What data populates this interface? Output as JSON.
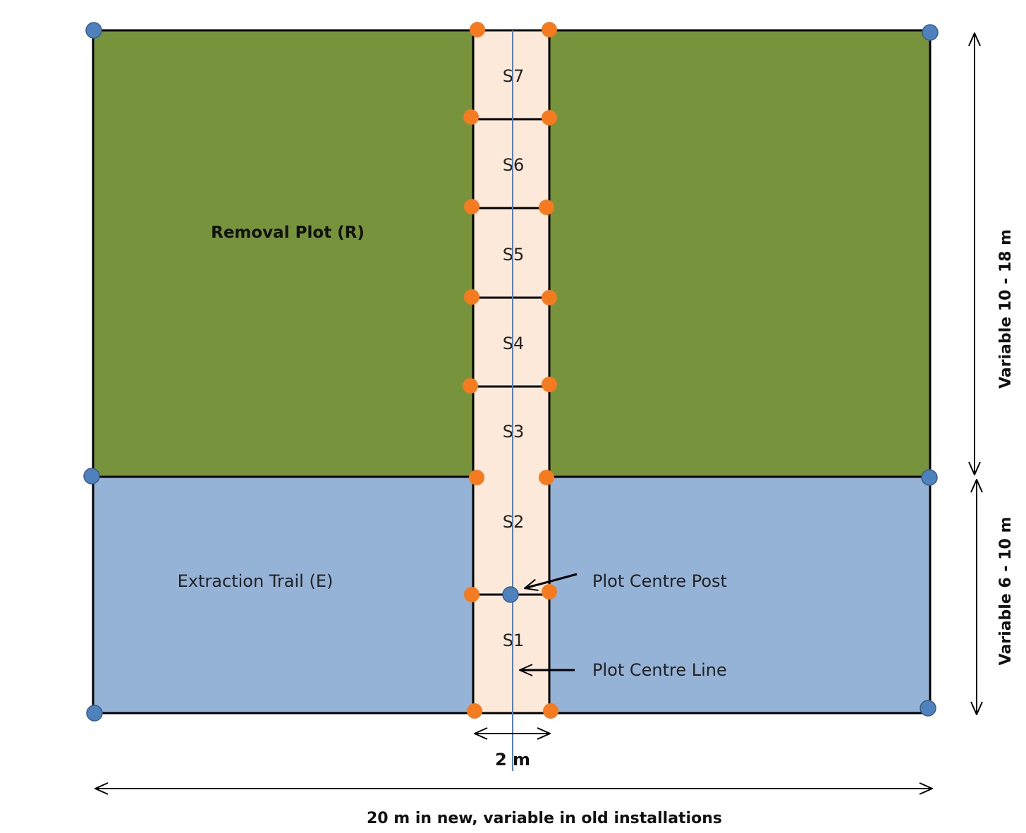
{
  "diagram": {
    "colors": {
      "removal_plot": "#77933c",
      "extraction_trail": "#95b3d7",
      "subplot_strip": "#fde9d9",
      "outline": "#000000",
      "centre_line": "#4f81bd",
      "corner_marker": "#4f81bd",
      "subplot_marker": "#f47b20"
    },
    "labels": {
      "removal_plot": "Removal Plot (R)",
      "extraction_trail": "Extraction Trail (E)",
      "plot_centre_post": "Plot Centre Post",
      "plot_centre_line": "Plot Centre Line",
      "strip_width": "2 m",
      "plot_width": "20 m in new, variable in old installations",
      "removal_depth": "Variable 10 - 18 m",
      "trail_depth": "Variable 6 - 10 m"
    },
    "subplots": [
      "S7",
      "S6",
      "S5",
      "S4",
      "S3",
      "S2",
      "S1"
    ]
  }
}
